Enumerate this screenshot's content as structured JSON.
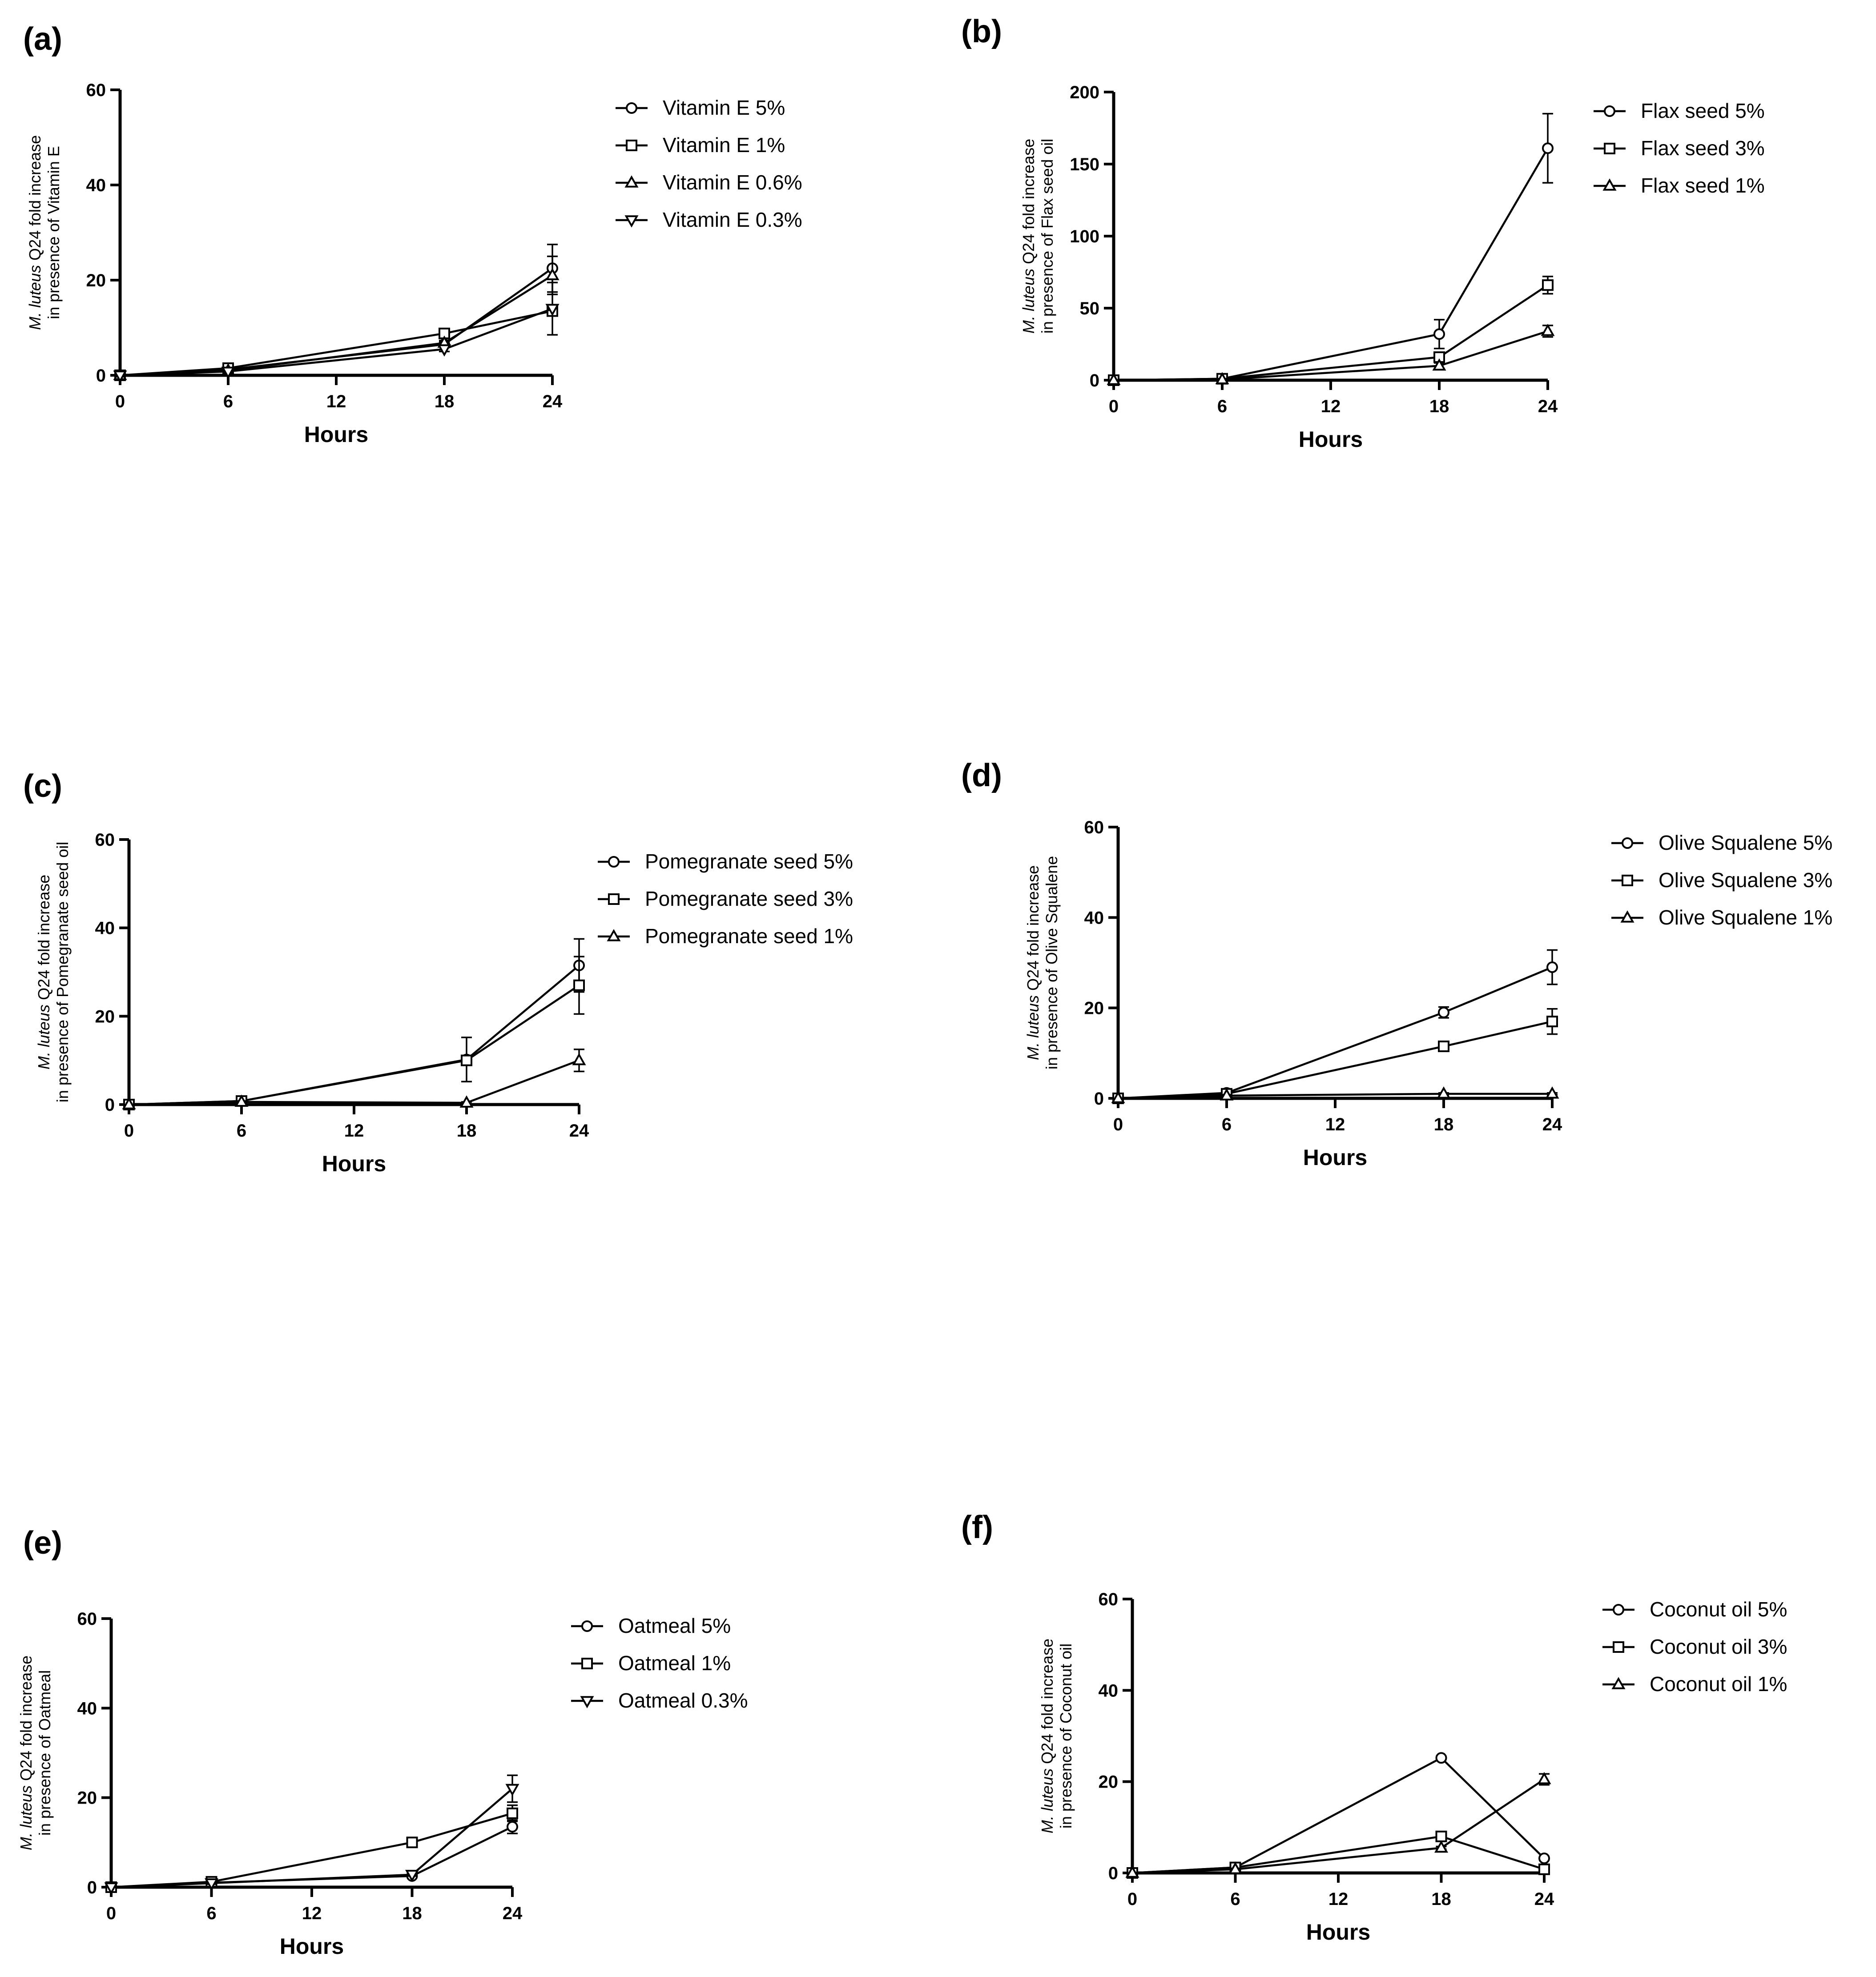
{
  "panels": [
    {
      "label": "(a)",
      "chart_data": {
        "type": "line",
        "xlabel": "Hours",
        "ylabel": {
          "italic": "M. luteus",
          "rest": " Q24 fold increase",
          "line2": "in presence of Vitamin  E"
        },
        "xlim": [
          0,
          24
        ],
        "ylim": [
          0,
          60
        ],
        "xticks": [
          0,
          6,
          12,
          18,
          24
        ],
        "yticks": [
          0,
          20,
          40,
          60
        ],
        "x": [
          0,
          6,
          18,
          24
        ],
        "series": [
          {
            "name": "Vitamin E 5%",
            "marker": "circle",
            "values": [
              0,
              1.2,
              6.5,
              22.5
            ],
            "error": [
              0,
              0.3,
              0.5,
              5
            ]
          },
          {
            "name": "Vitamin E 1%",
            "marker": "square",
            "values": [
              0,
              1.5,
              8.8,
              13.5
            ],
            "error": [
              0,
              0.3,
              0.5,
              1
            ]
          },
          {
            "name": "Vitamin E 0.6%",
            "marker": "triangle-up",
            "values": [
              0,
              1.0,
              6.8,
              21
            ],
            "error": [
              0,
              0.3,
              0.5,
              4
            ]
          },
          {
            "name": "Vitamin E 0.3%",
            "marker": "triangle-down",
            "values": [
              0,
              0.8,
              5.5,
              14
            ],
            "error": [
              0,
              0.3,
              0.5,
              5.5
            ]
          }
        ]
      }
    },
    {
      "label": "(b)",
      "chart_data": {
        "type": "line",
        "xlabel": "Hours",
        "ylabel": {
          "italic": "M. luteus",
          "rest": " Q24 fold increase",
          "line2": "in presence of Flax seed oil"
        },
        "xlim": [
          0,
          24
        ],
        "ylim": [
          0,
          200
        ],
        "xticks": [
          0,
          6,
          12,
          18,
          24
        ],
        "yticks": [
          0,
          50,
          100,
          150,
          200
        ],
        "x": [
          0,
          6,
          18,
          24
        ],
        "series": [
          {
            "name": "Flax seed 5%",
            "marker": "circle",
            "values": [
              0,
              1,
              32,
              161
            ],
            "error": [
              0,
              0.5,
              10,
              24
            ]
          },
          {
            "name": "Flax seed 3%",
            "marker": "square",
            "values": [
              0,
              1,
              16,
              66
            ],
            "error": [
              0,
              0.5,
              3,
              6
            ]
          },
          {
            "name": "Flax seed 1%",
            "marker": "triangle-up",
            "values": [
              0,
              0.5,
              10,
              34
            ],
            "error": [
              0,
              0.5,
              2,
              4
            ]
          }
        ]
      }
    },
    {
      "label": "(c)",
      "chart_data": {
        "type": "line",
        "xlabel": "Hours",
        "ylabel": {
          "italic": "M. luteus",
          "rest": " Q24 fold increase",
          "line2": "in presence of Pomegranate seed oil"
        },
        "xlim": [
          0,
          24
        ],
        "ylim": [
          0,
          60
        ],
        "xticks": [
          0,
          6,
          12,
          18,
          24
        ],
        "yticks": [
          0,
          20,
          40,
          60
        ],
        "x": [
          0,
          6,
          18,
          24
        ],
        "series": [
          {
            "name": "Pomegranate seed 5%",
            "marker": "circle",
            "values": [
              0,
              0.8,
              10.2,
              31.5
            ],
            "error": [
              0,
              0.3,
              5,
              6
            ]
          },
          {
            "name": "Pomegranate seed 3%",
            "marker": "square",
            "values": [
              0,
              0.8,
              10,
              27
            ],
            "error": [
              0,
              0.3,
              0.5,
              6.5
            ]
          },
          {
            "name": "Pomegranate seed 1%",
            "marker": "triangle-up",
            "values": [
              0,
              0.6,
              0.4,
              10
            ],
            "error": [
              0,
              0.2,
              0.2,
              2.5
            ]
          }
        ]
      }
    },
    {
      "label": "(d)",
      "chart_data": {
        "type": "line",
        "xlabel": "Hours",
        "ylabel": {
          "italic": "M. luteus",
          "rest": " Q24 fold increase",
          "line2": "in presence of Olive Squalene"
        },
        "xlim": [
          0,
          24
        ],
        "ylim": [
          0,
          60
        ],
        "xticks": [
          0,
          6,
          12,
          18,
          24
        ],
        "yticks": [
          0,
          20,
          40,
          60
        ],
        "x": [
          0,
          6,
          18,
          24
        ],
        "series": [
          {
            "name": "Olive Squalene 5%",
            "marker": "circle",
            "values": [
              0,
              1.2,
              19,
              29
            ],
            "error": [
              0,
              0.3,
              1.2,
              3.8
            ]
          },
          {
            "name": "Olive Squalene 3%",
            "marker": "square",
            "values": [
              0,
              1,
              11.5,
              17
            ],
            "error": [
              0,
              0.3,
              0.5,
              2.8
            ]
          },
          {
            "name": "Olive Squalene 1%",
            "marker": "triangle-up",
            "values": [
              0,
              0.6,
              1,
              1
            ],
            "error": [
              0,
              0.2,
              0.2,
              0.2
            ]
          }
        ]
      }
    },
    {
      "label": "(e)",
      "chart_data": {
        "type": "line",
        "xlabel": "Hours",
        "ylabel": {
          "italic": "M. luteus",
          "rest": " Q24 fold increase",
          "line2": "in presence of Oatmeal"
        },
        "xlim": [
          0,
          24
        ],
        "ylim": [
          0,
          60
        ],
        "xticks": [
          0,
          6,
          12,
          18,
          24
        ],
        "yticks": [
          0,
          20,
          40,
          60
        ],
        "x": [
          0,
          6,
          18,
          24
        ],
        "series": [
          {
            "name": "Oatmeal 5%",
            "marker": "circle",
            "values": [
              0,
              1,
              2.5,
              13.5
            ],
            "error": [
              0,
              0.2,
              0.3,
              1.5
            ]
          },
          {
            "name": "Oatmeal 1%",
            "marker": "square",
            "values": [
              0,
              1.2,
              10,
              16.5
            ],
            "error": [
              0,
              0.2,
              0.4,
              1.8
            ]
          },
          {
            "name": "Oatmeal 0.3%",
            "marker": "triangle-down",
            "values": [
              0,
              0.9,
              2.8,
              22
            ],
            "error": [
              0,
              0.2,
              0.3,
              3
            ]
          }
        ]
      }
    },
    {
      "label": "(f)",
      "chart_data": {
        "type": "line",
        "xlabel": "Hours",
        "ylabel": {
          "italic": "M. luteus",
          "rest": " Q24 fold increase",
          "line2": "in presence of Coconut oil"
        },
        "xlim": [
          0,
          24
        ],
        "ylim": [
          0,
          60
        ],
        "xticks": [
          0,
          6,
          12,
          18,
          24
        ],
        "yticks": [
          0,
          20,
          40,
          60
        ],
        "x": [
          0,
          6,
          18,
          24
        ],
        "series": [
          {
            "name": "Coconut oil 5%",
            "marker": "circle",
            "values": [
              0,
              1.2,
              25.2,
              3.2
            ],
            "error": [
              0,
              0.2,
              0.4,
              0.4
            ]
          },
          {
            "name": "Coconut oil 3%",
            "marker": "square",
            "values": [
              0,
              1.2,
              8,
              0.8
            ],
            "error": [
              0,
              0.2,
              0.4,
              0.2
            ]
          },
          {
            "name": "Coconut oil 1%",
            "marker": "triangle-up",
            "values": [
              0,
              0.8,
              5.5,
              20.5
            ],
            "error": [
              0,
              0.2,
              0.3,
              1.2
            ]
          }
        ]
      }
    }
  ]
}
